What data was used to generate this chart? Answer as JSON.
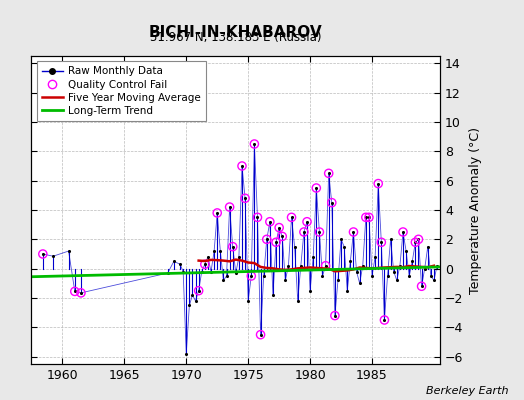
{
  "title": "BICHI-IN-KHABAROV",
  "subtitle": "51.967 N, 138.183 E (Russia)",
  "ylabel": "Temperature Anomaly (°C)",
  "credit": "Berkeley Earth",
  "xlim": [
    1957.5,
    1990.5
  ],
  "ylim": [
    -6.5,
    14.5
  ],
  "yticks": [
    -6,
    -4,
    -2,
    0,
    2,
    4,
    6,
    8,
    10,
    12,
    14
  ],
  "xticks": [
    1960,
    1965,
    1970,
    1975,
    1980,
    1985
  ],
  "bg_color": "#e8e8e8",
  "plot_bg_color": "#ffffff",
  "raw_color": "#0000cc",
  "qc_color": "#ff00ff",
  "moving_avg_color": "#cc0000",
  "trend_color": "#00bb00",
  "raw_data": [
    [
      1958.42,
      1.0
    ],
    [
      1959.25,
      0.85
    ],
    [
      1960.5,
      1.2
    ],
    [
      1961.0,
      -1.55
    ],
    [
      1961.5,
      -1.65
    ],
    [
      1968.5,
      -0.3
    ],
    [
      1969.0,
      0.5
    ],
    [
      1969.5,
      0.3
    ],
    [
      1969.75,
      -0.2
    ],
    [
      1970.0,
      -5.8
    ],
    [
      1970.25,
      -2.5
    ],
    [
      1970.5,
      -1.8
    ],
    [
      1970.75,
      -2.2
    ],
    [
      1971.0,
      -1.5
    ],
    [
      1971.25,
      -0.2
    ],
    [
      1971.5,
      0.3
    ],
    [
      1971.75,
      0.8
    ],
    [
      1972.0,
      -0.2
    ],
    [
      1972.25,
      1.2
    ],
    [
      1972.5,
      3.8
    ],
    [
      1972.75,
      1.2
    ],
    [
      1973.0,
      -0.8
    ],
    [
      1973.25,
      -0.5
    ],
    [
      1973.5,
      4.2
    ],
    [
      1973.75,
      1.5
    ],
    [
      1974.0,
      -0.3
    ],
    [
      1974.25,
      0.8
    ],
    [
      1974.5,
      7.0
    ],
    [
      1974.75,
      4.8
    ],
    [
      1975.0,
      -2.2
    ],
    [
      1975.25,
      -0.5
    ],
    [
      1975.5,
      8.5
    ],
    [
      1975.75,
      3.5
    ],
    [
      1976.0,
      -4.5
    ],
    [
      1976.25,
      -0.5
    ],
    [
      1976.5,
      2.0
    ],
    [
      1976.75,
      3.2
    ],
    [
      1977.0,
      -1.8
    ],
    [
      1977.25,
      1.8
    ],
    [
      1977.5,
      2.8
    ],
    [
      1977.75,
      2.2
    ],
    [
      1978.0,
      -0.8
    ],
    [
      1978.25,
      0.2
    ],
    [
      1978.5,
      3.5
    ],
    [
      1978.75,
      1.5
    ],
    [
      1979.0,
      -2.2
    ],
    [
      1979.25,
      0.2
    ],
    [
      1979.5,
      2.5
    ],
    [
      1979.75,
      3.2
    ],
    [
      1980.0,
      -1.5
    ],
    [
      1980.25,
      0.8
    ],
    [
      1980.5,
      5.5
    ],
    [
      1980.75,
      2.5
    ],
    [
      1981.0,
      -0.5
    ],
    [
      1981.25,
      0.2
    ],
    [
      1981.5,
      6.5
    ],
    [
      1981.75,
      4.5
    ],
    [
      1982.0,
      -3.2
    ],
    [
      1982.25,
      -0.8
    ],
    [
      1982.5,
      2.0
    ],
    [
      1982.75,
      1.5
    ],
    [
      1983.0,
      -1.5
    ],
    [
      1983.25,
      0.5
    ],
    [
      1983.5,
      2.5
    ],
    [
      1983.75,
      -0.2
    ],
    [
      1984.0,
      -1.0
    ],
    [
      1984.25,
      0.2
    ],
    [
      1984.5,
      3.5
    ],
    [
      1984.75,
      3.5
    ],
    [
      1985.0,
      -0.5
    ],
    [
      1985.25,
      0.8
    ],
    [
      1985.5,
      5.8
    ],
    [
      1985.75,
      1.8
    ],
    [
      1986.0,
      -3.5
    ],
    [
      1986.25,
      -0.5
    ],
    [
      1986.5,
      2.0
    ],
    [
      1986.75,
      -0.2
    ],
    [
      1987.0,
      -0.8
    ],
    [
      1987.25,
      0.2
    ],
    [
      1987.5,
      2.5
    ],
    [
      1987.75,
      1.2
    ],
    [
      1988.0,
      -0.5
    ],
    [
      1988.25,
      0.5
    ],
    [
      1988.5,
      1.8
    ],
    [
      1988.75,
      2.0
    ],
    [
      1989.0,
      -1.2
    ],
    [
      1989.25,
      0.0
    ],
    [
      1989.5,
      1.5
    ],
    [
      1989.75,
      -0.5
    ],
    [
      1990.0,
      -0.8
    ],
    [
      1990.25,
      0.2
    ]
  ],
  "qc_fail_points": [
    [
      1958.42,
      1.0
    ],
    [
      1961.0,
      -1.55
    ],
    [
      1961.5,
      -1.65
    ],
    [
      1971.0,
      -1.5
    ],
    [
      1971.5,
      0.3
    ],
    [
      1972.5,
      3.8
    ],
    [
      1973.5,
      4.2
    ],
    [
      1973.75,
      1.5
    ],
    [
      1974.5,
      7.0
    ],
    [
      1974.75,
      4.8
    ],
    [
      1975.25,
      -0.5
    ],
    [
      1975.5,
      8.5
    ],
    [
      1975.75,
      3.5
    ],
    [
      1976.0,
      -4.5
    ],
    [
      1976.5,
      2.0
    ],
    [
      1976.75,
      3.2
    ],
    [
      1977.25,
      1.8
    ],
    [
      1977.5,
      2.8
    ],
    [
      1977.75,
      2.2
    ],
    [
      1978.5,
      3.5
    ],
    [
      1979.5,
      2.5
    ],
    [
      1979.75,
      3.2
    ],
    [
      1980.5,
      5.5
    ],
    [
      1980.75,
      2.5
    ],
    [
      1981.25,
      0.2
    ],
    [
      1981.5,
      6.5
    ],
    [
      1981.75,
      4.5
    ],
    [
      1982.0,
      -3.2
    ],
    [
      1983.5,
      2.5
    ],
    [
      1984.5,
      3.5
    ],
    [
      1984.75,
      3.5
    ],
    [
      1985.5,
      5.8
    ],
    [
      1985.75,
      1.8
    ],
    [
      1986.0,
      -3.5
    ],
    [
      1987.5,
      2.5
    ],
    [
      1988.5,
      1.8
    ],
    [
      1988.75,
      2.0
    ],
    [
      1989.0,
      -1.2
    ]
  ],
  "moving_avg": [
    [
      1971.0,
      0.55
    ],
    [
      1971.5,
      0.52
    ],
    [
      1972.0,
      0.6
    ],
    [
      1972.5,
      0.58
    ],
    [
      1973.0,
      0.55
    ],
    [
      1973.5,
      0.5
    ],
    [
      1974.0,
      0.62
    ],
    [
      1974.5,
      0.55
    ],
    [
      1975.0,
      0.42
    ],
    [
      1975.5,
      0.38
    ],
    [
      1976.0,
      0.12
    ],
    [
      1976.5,
      0.05
    ],
    [
      1977.0,
      0.02
    ],
    [
      1977.5,
      -0.05
    ],
    [
      1978.0,
      -0.08
    ],
    [
      1978.5,
      -0.05
    ],
    [
      1979.0,
      0.02
    ],
    [
      1979.5,
      0.05
    ],
    [
      1980.0,
      0.08
    ],
    [
      1980.5,
      0.05
    ],
    [
      1981.0,
      0.02
    ],
    [
      1981.5,
      0.0
    ],
    [
      1982.0,
      -0.18
    ],
    [
      1982.5,
      -0.15
    ],
    [
      1983.0,
      -0.12
    ],
    [
      1983.5,
      -0.05
    ],
    [
      1984.0,
      0.08
    ],
    [
      1984.5,
      0.05
    ],
    [
      1985.0,
      0.02
    ],
    [
      1985.5,
      0.05
    ],
    [
      1986.0,
      0.08
    ],
    [
      1986.5,
      0.1
    ],
    [
      1987.0,
      0.12
    ],
    [
      1987.5,
      0.1
    ],
    [
      1988.0,
      0.18
    ],
    [
      1988.5,
      0.15
    ],
    [
      1989.0,
      0.12
    ],
    [
      1989.5,
      0.1
    ],
    [
      1990.0,
      0.2
    ]
  ],
  "trend_x": [
    1957.5,
    1990.5
  ],
  "trend_y": [
    -0.55,
    0.12
  ]
}
